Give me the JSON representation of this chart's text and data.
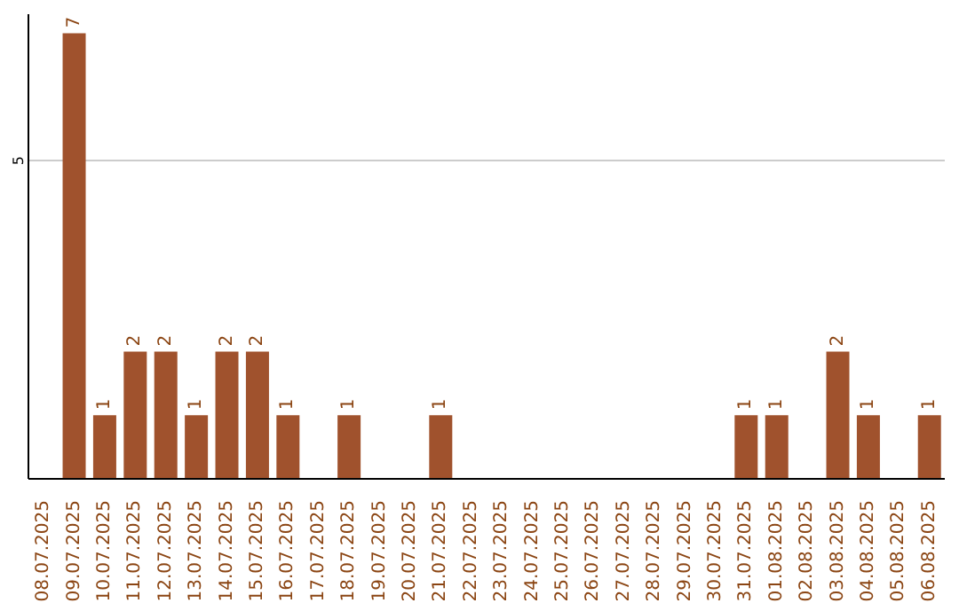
{
  "chart_data": {
    "type": "bar",
    "categories": [
      "08.07.2025",
      "09.07.2025",
      "10.07.2025",
      "11.07.2025",
      "12.07.2025",
      "13.07.2025",
      "14.07.2025",
      "15.07.2025",
      "16.07.2025",
      "17.07.2025",
      "18.07.2025",
      "19.07.2025",
      "20.07.2025",
      "21.07.2025",
      "22.07.2025",
      "23.07.2025",
      "24.07.2025",
      "25.07.2025",
      "26.07.2025",
      "27.07.2025",
      "28.07.2025",
      "29.07.2025",
      "30.07.2025",
      "31.07.2025",
      "01.08.2025",
      "02.08.2025",
      "03.08.2025",
      "04.08.2025",
      "05.08.2025",
      "06.08.2025"
    ],
    "values": [
      0,
      7,
      1,
      2,
      2,
      1,
      2,
      2,
      1,
      0,
      1,
      0,
      0,
      1,
      0,
      0,
      0,
      0,
      0,
      0,
      0,
      0,
      0,
      1,
      1,
      0,
      2,
      1,
      0,
      1
    ],
    "value_labels": [
      null,
      "7",
      "1",
      "2",
      "2",
      "1",
      "2",
      "2",
      "1",
      null,
      "1",
      null,
      null,
      "1",
      null,
      null,
      null,
      null,
      null,
      null,
      null,
      null,
      null,
      "1",
      "1",
      null,
      "2",
      "1",
      null,
      "1"
    ],
    "color": "#a0522d",
    "ylim": [
      0,
      7.3
    ],
    "yticks": [
      5
    ],
    "grid": "y"
  }
}
